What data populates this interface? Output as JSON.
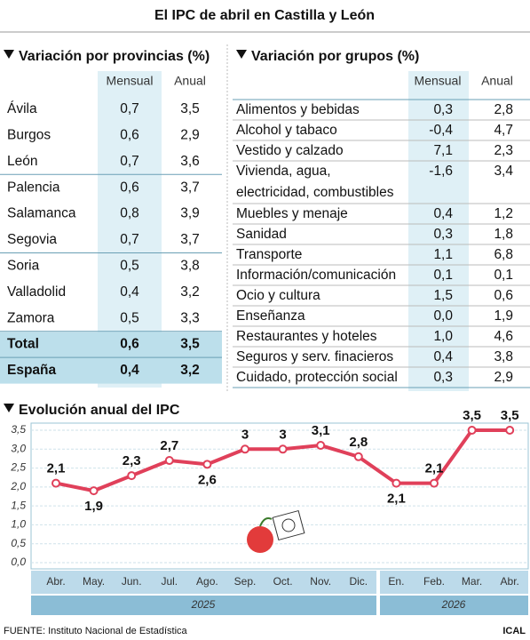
{
  "title": "El IPC de abril en Castilla y León",
  "provinces": {
    "heading": "Variación por provincias (%)",
    "columns": [
      "Mensual",
      "Anual"
    ],
    "rows": [
      [
        "Ávila",
        "0,7",
        "3,5"
      ],
      [
        "Burgos",
        "0,6",
        "2,9"
      ],
      [
        "León",
        "0,7",
        "3,6"
      ],
      [
        "Palencia",
        "0,6",
        "3,7"
      ],
      [
        "Salamanca",
        "0,8",
        "3,9"
      ],
      [
        "Segovia",
        "0,7",
        "3,7"
      ],
      [
        "Soria",
        "0,5",
        "3,8"
      ],
      [
        "Valladolid",
        "0,4",
        "3,2"
      ],
      [
        "Zamora",
        "0,5",
        "3,3"
      ],
      [
        "Total",
        "0,6",
        "3,5"
      ],
      [
        "España",
        "0,4",
        "3,2"
      ]
    ]
  },
  "groups": {
    "heading": "Variación por grupos (%)",
    "columns": [
      "Mensual",
      "Anual"
    ],
    "rows": [
      [
        [
          "Alimentos y bebidas"
        ],
        "0,3",
        "2,8"
      ],
      [
        [
          "Alcohol y tabaco"
        ],
        "-0,4",
        "4,7"
      ],
      [
        [
          "Vestido y calzado"
        ],
        "7,1",
        "2,3"
      ],
      [
        [
          "Vivienda, agua,",
          "electricidad, combustibles"
        ],
        "-1,6",
        "3,4"
      ],
      [
        [
          "Muebles y menaje"
        ],
        "0,4",
        "1,2"
      ],
      [
        [
          "Sanidad"
        ],
        "0,3",
        "1,8"
      ],
      [
        [
          "Transporte"
        ],
        "1,1",
        "6,8"
      ],
      [
        [
          "Información/comunicación"
        ],
        "0,1",
        "0,1"
      ],
      [
        [
          "Ocio y cultura"
        ],
        "1,5",
        "0,6"
      ],
      [
        [
          "Enseñanza"
        ],
        "0,0",
        "1,9"
      ],
      [
        [
          "Restaurantes y hoteles"
        ],
        "1,0",
        "4,6"
      ],
      [
        [
          "Seguros y serv. finacieros"
        ],
        "0,4",
        "3,8"
      ],
      [
        [
          "Cuidado, protección social"
        ],
        "0,3",
        "2,9"
      ]
    ]
  },
  "chart_data": {
    "type": "line",
    "title": "Evolución anual del IPC",
    "categories": [
      "Abr.",
      "May.",
      "Jun.",
      "Jul.",
      "Ago.",
      "Sep.",
      "Oct.",
      "Nov.",
      "Dic.",
      "En.",
      "Feb.",
      "Mar.",
      "Abr."
    ],
    "years": [
      "2025",
      "2026"
    ],
    "series": [
      {
        "name": "IPC anual",
        "color": "#e0405a",
        "values": [
          2.1,
          1.9,
          2.3,
          2.7,
          2.6,
          3,
          3,
          3.1,
          2.8,
          2.1,
          2.1,
          3.5,
          3.5
        ],
        "value_labels": [
          "2,1",
          "1,9",
          "2,3",
          "2,7",
          "2,6",
          "3",
          "3",
          "3,1",
          "2,8",
          "2,1",
          "2,1",
          "3,5",
          "3,5"
        ]
      }
    ],
    "ylim": [
      0,
      3.5
    ],
    "yticks": [
      {
        "value": 0,
        "label": "0,0"
      },
      {
        "value": 0.5,
        "label": "0,5"
      },
      {
        "value": 1,
        "label": "1,0"
      },
      {
        "value": 1.5,
        "label": "1,5"
      },
      {
        "value": 2,
        "label": "2,0"
      },
      {
        "value": 2.5,
        "label": "2,5"
      },
      {
        "value": 3,
        "label": "3,0"
      },
      {
        "value": 3.5,
        "label": "3,5"
      }
    ],
    "grid": true
  },
  "source": "FUENTE: Instituto Nacional de Estadística",
  "credit": "ICAL"
}
